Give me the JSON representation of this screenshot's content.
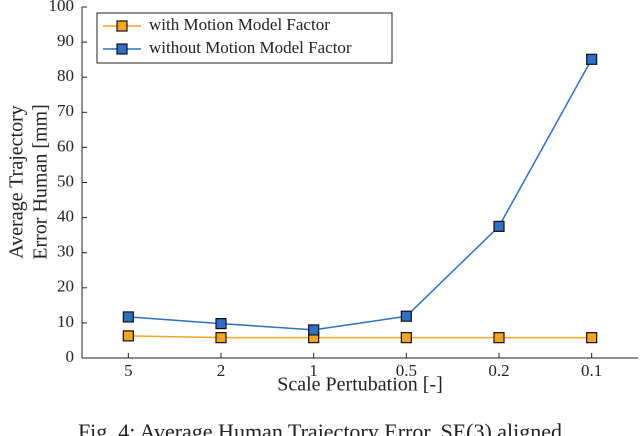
{
  "chart_data": {
    "type": "line",
    "xlabel": "Scale Pertubation [-]",
    "ylabel": [
      "Average Trajectory",
      "Error Human [mm]"
    ],
    "categories": [
      "5",
      "2",
      "1",
      "0.5",
      "0.2",
      "0.1"
    ],
    "series": [
      {
        "name": "with Motion Model Factor",
        "color": "#f5a524",
        "values": [
          6.3,
          5.8,
          5.8,
          5.8,
          5.8,
          5.8
        ]
      },
      {
        "name": "without Motion Model Factor",
        "color": "#2f6fc4",
        "values": [
          11.7,
          9.8,
          8.0,
          11.9,
          37.5,
          85.1
        ]
      }
    ],
    "ylim": [
      0,
      100
    ],
    "yticks": [
      0,
      10,
      20,
      30,
      40,
      50,
      60,
      70,
      80,
      90,
      100
    ],
    "legend": "top-left",
    "grid": false
  },
  "caption": "Fig. 4: Average Human Trajectory Error. SE(3) aligned"
}
